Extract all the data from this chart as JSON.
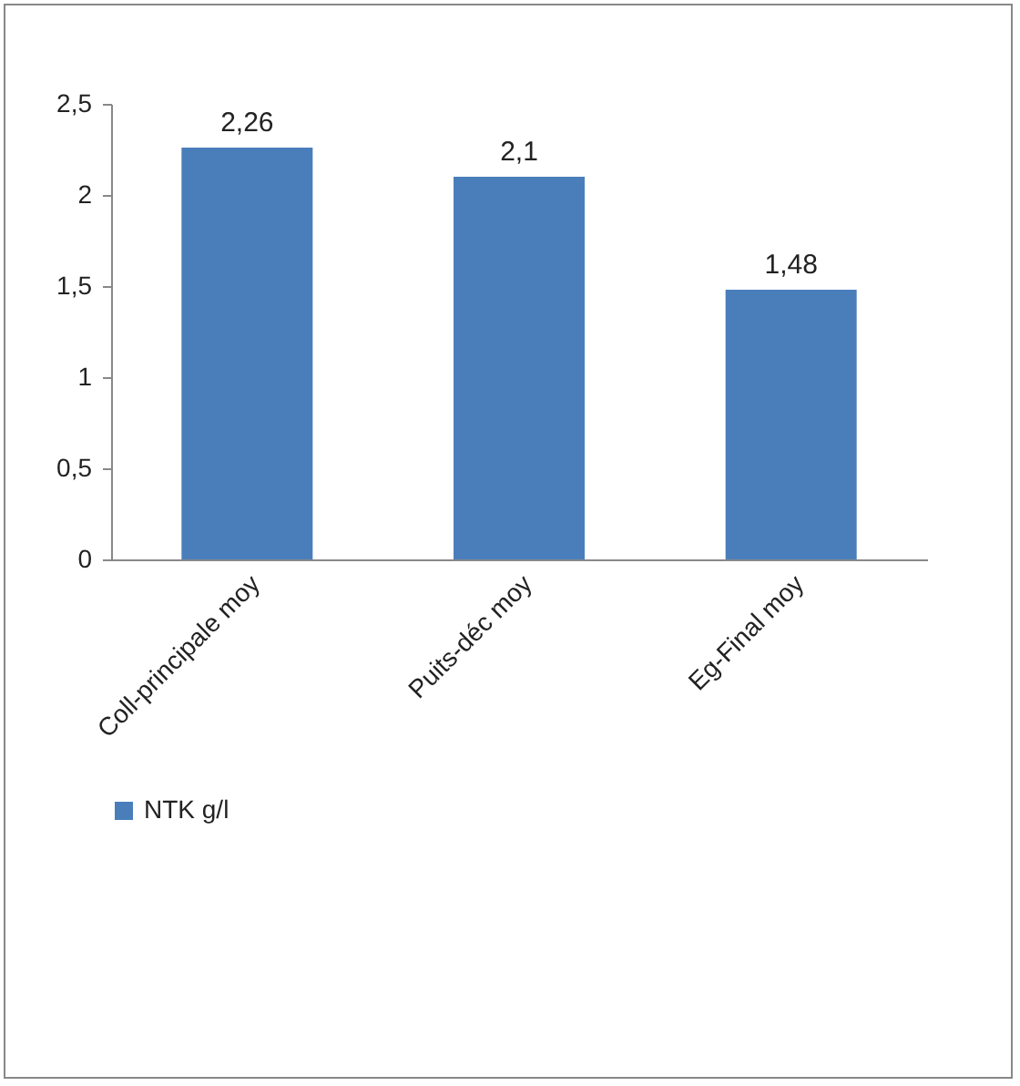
{
  "chart_data": {
    "type": "bar",
    "categories": [
      "Coll-principale moy",
      "Puits-déc moy",
      "Eg-Final moy"
    ],
    "series": [
      {
        "name": "NTK g/l",
        "color": "#4a7ebb",
        "values": [
          2.26,
          2.1,
          1.48
        ],
        "value_labels": [
          "2,26",
          "2,1",
          "1,48"
        ]
      }
    ],
    "ylim": [
      0,
      2.5
    ],
    "yticks": [
      0,
      {
        "value": 0.5,
        "label": "0,5"
      },
      1,
      {
        "value": 1.5,
        "label": "1,5"
      },
      2,
      {
        "value": 2.5,
        "label": "2,5"
      }
    ],
    "grid": false,
    "legend": "bottom"
  }
}
